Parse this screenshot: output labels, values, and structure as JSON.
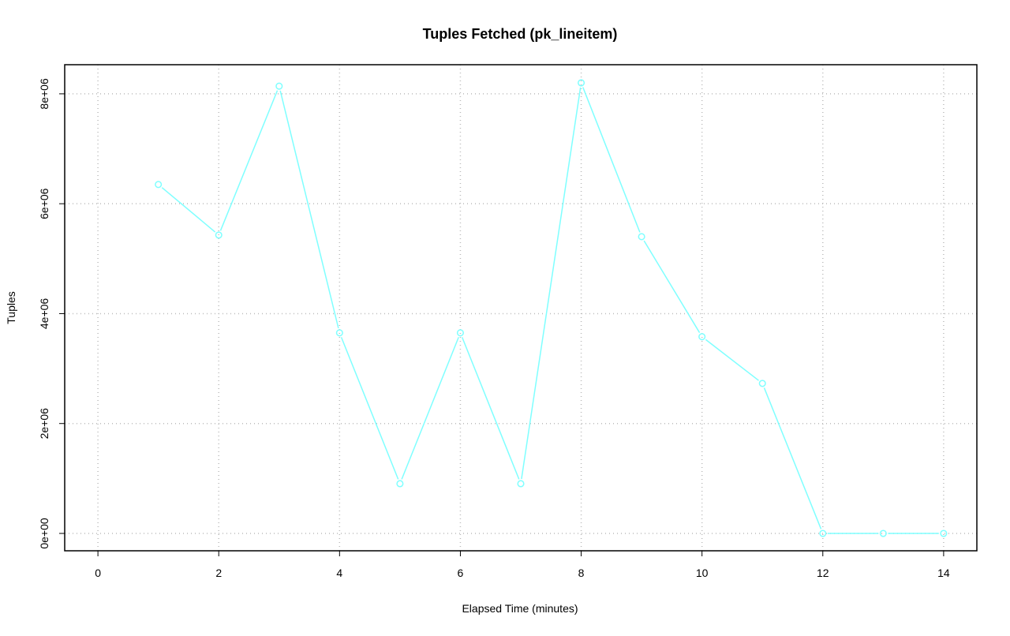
{
  "chart_data": {
    "type": "line",
    "title": "Tuples Fetched (pk_lineitem)",
    "xlabel": "Elapsed Time (minutes)",
    "ylabel": "Tuples",
    "x": [
      1,
      2,
      3,
      4,
      5,
      6,
      7,
      8,
      9,
      10,
      11,
      12,
      13,
      14
    ],
    "series": [
      {
        "values": [
          6350000,
          5430000,
          8140000,
          3650000,
          905000,
          3650000,
          905000,
          8200000,
          5400000,
          3580000,
          2730000,
          0,
          0,
          0
        ],
        "color": "#7FFFFF"
      }
    ],
    "xticks": [
      0,
      2,
      4,
      6,
      8,
      10,
      12,
      14
    ],
    "xtick_labels": [
      "0",
      "2",
      "4",
      "6",
      "8",
      "10",
      "12",
      "14"
    ],
    "yticks": [
      0,
      2000000,
      4000000,
      6000000,
      8000000
    ],
    "ytick_labels": [
      "0e+00",
      "2e+06",
      "4e+06",
      "6e+06",
      "8e+06"
    ],
    "xlim": [
      -0.55,
      14.55
    ],
    "ylim": [
      -316000,
      8530000
    ],
    "grid": true,
    "markers": "open-circle"
  }
}
